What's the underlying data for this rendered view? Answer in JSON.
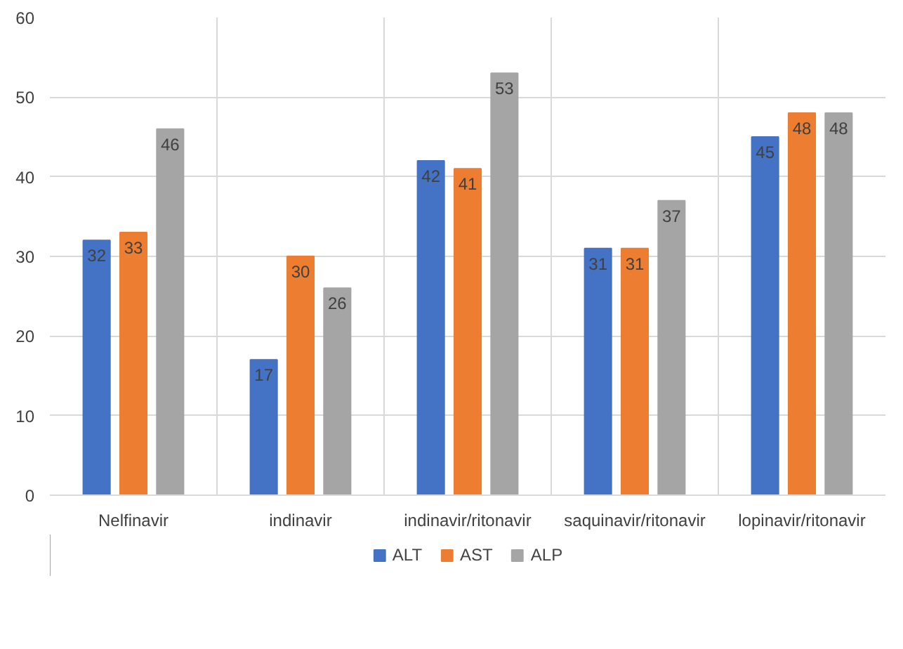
{
  "chart_data": {
    "type": "bar",
    "categories": [
      "Nelfinavir",
      "indinavir",
      "indinavir/ritonavir",
      "saquinavir/ritonavir",
      "lopinavir/ritonavir"
    ],
    "series": [
      {
        "name": "ALT",
        "color": "#4472c4",
        "values": [
          32,
          17,
          42,
          31,
          45
        ]
      },
      {
        "name": "AST",
        "color": "#ed7d31",
        "values": [
          33,
          30,
          41,
          31,
          48
        ]
      },
      {
        "name": "ALP",
        "color": "#a5a5a5",
        "values": [
          46,
          26,
          53,
          37,
          48
        ]
      }
    ],
    "ylim": [
      0,
      60
    ],
    "yticks": [
      0,
      10,
      20,
      30,
      40,
      50,
      60
    ],
    "grid": true,
    "legend": "bottom",
    "data_labels": true
  }
}
